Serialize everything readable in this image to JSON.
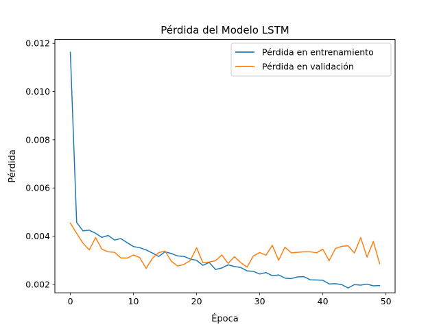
{
  "chart_data": {
    "type": "line",
    "title": "Pérdida del Modelo LSTM",
    "xlabel": "Época",
    "ylabel": "Pérdida",
    "xlim": [
      -2.45,
      51.45
    ],
    "ylim": [
      0.00165,
      0.01216
    ],
    "xticks": [
      0,
      10,
      20,
      30,
      40,
      50
    ],
    "yticks": [
      0.002,
      0.004,
      0.006,
      0.008,
      0.01,
      0.012
    ],
    "ytick_labels": [
      "0.002",
      "0.004",
      "0.006",
      "0.008",
      "0.010",
      "0.012"
    ],
    "grid": false,
    "legend_position": "top-right",
    "x": [
      0,
      1,
      2,
      3,
      4,
      5,
      6,
      7,
      8,
      9,
      10,
      11,
      12,
      13,
      14,
      15,
      16,
      17,
      18,
      19,
      20,
      21,
      22,
      23,
      24,
      25,
      26,
      27,
      28,
      29,
      30,
      31,
      32,
      33,
      34,
      35,
      36,
      37,
      38,
      39,
      40,
      41,
      42,
      43,
      44,
      45,
      46,
      47,
      48,
      49
    ],
    "series": [
      {
        "name": "Pérdida en entrenamiento",
        "color": "#1f77b4",
        "values": [
          0.01163,
          0.00457,
          0.00422,
          0.00425,
          0.00412,
          0.00395,
          0.00403,
          0.00384,
          0.0039,
          0.00373,
          0.00357,
          0.00352,
          0.00343,
          0.0033,
          0.00316,
          0.00335,
          0.00328,
          0.00318,
          0.00316,
          0.00305,
          0.003,
          0.00279,
          0.00291,
          0.00262,
          0.00268,
          0.00281,
          0.00274,
          0.0027,
          0.00256,
          0.00254,
          0.00243,
          0.00249,
          0.00236,
          0.00239,
          0.00226,
          0.00224,
          0.00231,
          0.00232,
          0.00219,
          0.00218,
          0.00217,
          0.00202,
          0.00203,
          0.00199,
          0.00185,
          0.00199,
          0.00197,
          0.00201,
          0.00194,
          0.00195
        ]
      },
      {
        "name": "Pérdida en validación",
        "color": "#ff7f0e",
        "values": [
          0.00454,
          0.00412,
          0.00371,
          0.00343,
          0.00394,
          0.00346,
          0.00335,
          0.00333,
          0.0031,
          0.00309,
          0.00322,
          0.00311,
          0.00266,
          0.00308,
          0.00332,
          0.00338,
          0.00296,
          0.00276,
          0.00283,
          0.00299,
          0.00352,
          0.0029,
          0.00293,
          0.00298,
          0.00322,
          0.00287,
          0.00315,
          0.0029,
          0.00272,
          0.00318,
          0.00332,
          0.00321,
          0.00362,
          0.003,
          0.00354,
          0.00331,
          0.00333,
          0.00335,
          0.00335,
          0.00331,
          0.00346,
          0.00298,
          0.00349,
          0.00358,
          0.0036,
          0.0033,
          0.00394,
          0.00313,
          0.00378,
          0.00286
        ]
      }
    ]
  }
}
